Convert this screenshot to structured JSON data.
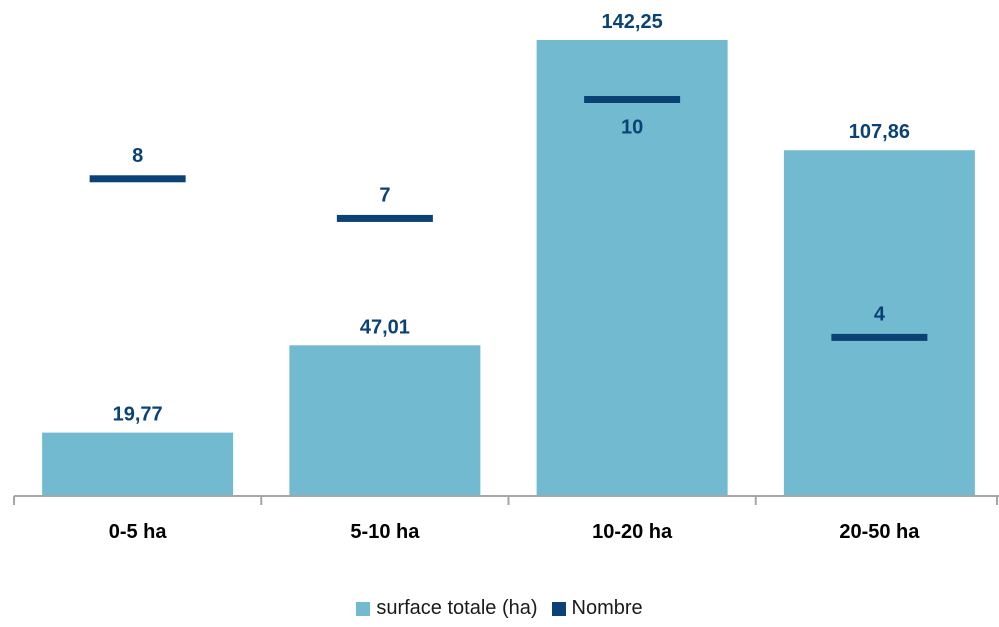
{
  "chart_data": {
    "type": "bar",
    "categories": [
      "0-5 ha",
      "5-10 ha",
      "10-20 ha",
      "20-50 ha"
    ],
    "series": [
      {
        "name": "surface totale (ha)",
        "kind": "bar",
        "axis": "primary",
        "values": [
          19.77,
          47.01,
          142.25,
          107.86
        ],
        "labels": [
          "19,77",
          "47,01",
          "142,25",
          "107,86"
        ],
        "color": "#72BACF"
      },
      {
        "name": "Nombre",
        "kind": "marker-line",
        "axis": "secondary",
        "values": [
          8,
          7,
          10,
          4
        ],
        "labels": [
          "8",
          "7",
          "10",
          "4"
        ],
        "color": "#0A4275"
      }
    ],
    "primary_ylim": [
      0,
      142.25
    ],
    "secondary_ylim": [
      0,
      11.5
    ],
    "legend_position": "bottom",
    "grid": false,
    "label_color": "#0A4275",
    "axis_color": "#a6a6a6"
  }
}
